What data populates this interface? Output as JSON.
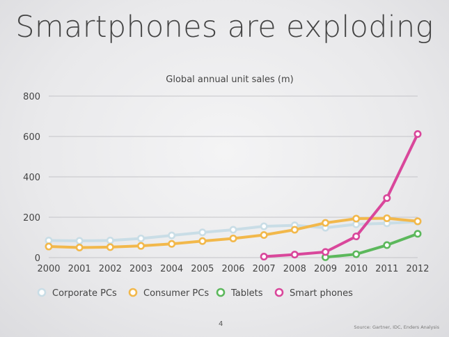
{
  "slide": {
    "title": "Smartphones are exploding",
    "page_number": "4",
    "source": "Source: Gartner, IDC, Enders Analysis"
  },
  "chart_data": {
    "type": "line",
    "title": "Global annual unit sales (m)",
    "xlabel": "",
    "ylabel": "",
    "x": [
      "2000",
      "2001",
      "2002",
      "2003",
      "2004",
      "2005",
      "2006",
      "2007",
      "2008",
      "2009",
      "2010",
      "2011",
      "2012"
    ],
    "ylim": [
      0,
      800
    ],
    "yticks": [
      0,
      200,
      400,
      600,
      800
    ],
    "grid": true,
    "legend_position": "bottom-left",
    "series": [
      {
        "name": "Corporate PCs",
        "color": "#c9dde6",
        "values": [
          85,
          83,
          85,
          95,
          110,
          125,
          138,
          155,
          160,
          148,
          165,
          170,
          178
        ]
      },
      {
        "name": "Consumer PCs",
        "color": "#f2b84b",
        "values": [
          55,
          50,
          52,
          58,
          68,
          82,
          95,
          112,
          138,
          172,
          193,
          195,
          180
        ]
      },
      {
        "name": "Tablets",
        "color": "#5cb85c",
        "values": [
          null,
          null,
          null,
          null,
          null,
          null,
          null,
          null,
          null,
          2,
          17,
          62,
          118
        ]
      },
      {
        "name": "Smart phones",
        "color": "#d9479b",
        "values": [
          null,
          null,
          null,
          null,
          null,
          null,
          null,
          5,
          15,
          28,
          105,
          295,
          612
        ]
      }
    ]
  }
}
